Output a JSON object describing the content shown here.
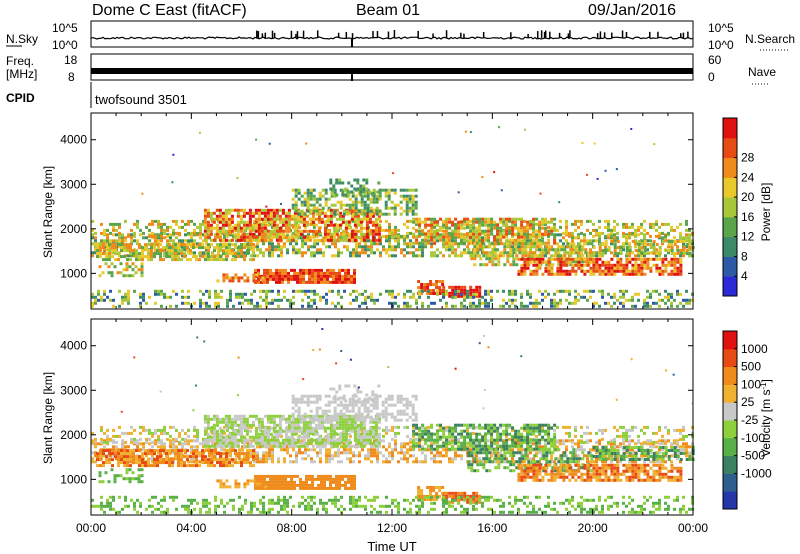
{
  "header": {
    "station": "Dome C East (fitACF)",
    "beam": "Beam 01",
    "date": "09/Jan/2016"
  },
  "aux_panels": {
    "nsky_label": "N.Sky",
    "nsky_ticks": [
      "10^5",
      "10^0"
    ],
    "nsearch_label": "N.Search",
    "nsearch_ticks": [
      "10^5",
      "10^0"
    ],
    "freq_label_1": "Freq.",
    "freq_label_2": "[MHz]",
    "freq_ticks": [
      "18",
      "8"
    ],
    "nave_label": "Nave",
    "nave_ticks": [
      "60",
      "0"
    ],
    "cpid_label": "CPID",
    "cpid_value": "twofsound 3501"
  },
  "chart_data": [
    {
      "type": "heatmap",
      "xlabel": "",
      "ylabel": "Slant Range [km]",
      "yticks": [
        "1000",
        "2000",
        "3000",
        "4000"
      ],
      "ylim": [
        200,
        4600
      ],
      "xlim_hours": [
        0,
        24
      ],
      "colorbar": {
        "label": "Power [dB]",
        "ticks": [
          "4",
          "8",
          "12",
          "16",
          "20",
          "24",
          "28"
        ],
        "colors": [
          "#2a2ad6",
          "#2f5aa6",
          "#3c8a6a",
          "#5aa54a",
          "#a8c83a",
          "#e8c82a",
          "#f08a1a",
          "#e84a14",
          "#e01010"
        ]
      }
    },
    {
      "type": "heatmap",
      "xlabel": "Time UT",
      "ylabel": "Slant Range [km]",
      "yticks": [
        "1000",
        "2000",
        "3000",
        "4000"
      ],
      "xticks": [
        "00:00",
        "04:00",
        "08:00",
        "12:00",
        "16:00",
        "20:00",
        "00:00"
      ],
      "ylim": [
        200,
        4600
      ],
      "xlim_hours": [
        0,
        24
      ],
      "colorbar": {
        "label": "Velocity [m s",
        "label_sup": "-1",
        "label_end": "]",
        "ticks": [
          "1000",
          "500",
          "100",
          "25",
          "-25",
          "-100",
          "-500",
          "-1000"
        ],
        "colors": [
          "#2636a8",
          "#2e5e8e",
          "#3b8060",
          "#5ab048",
          "#8ed03c",
          "#c8c8c8",
          "#f0b030",
          "#f08a1a",
          "#e84a14",
          "#e01010"
        ]
      }
    }
  ]
}
